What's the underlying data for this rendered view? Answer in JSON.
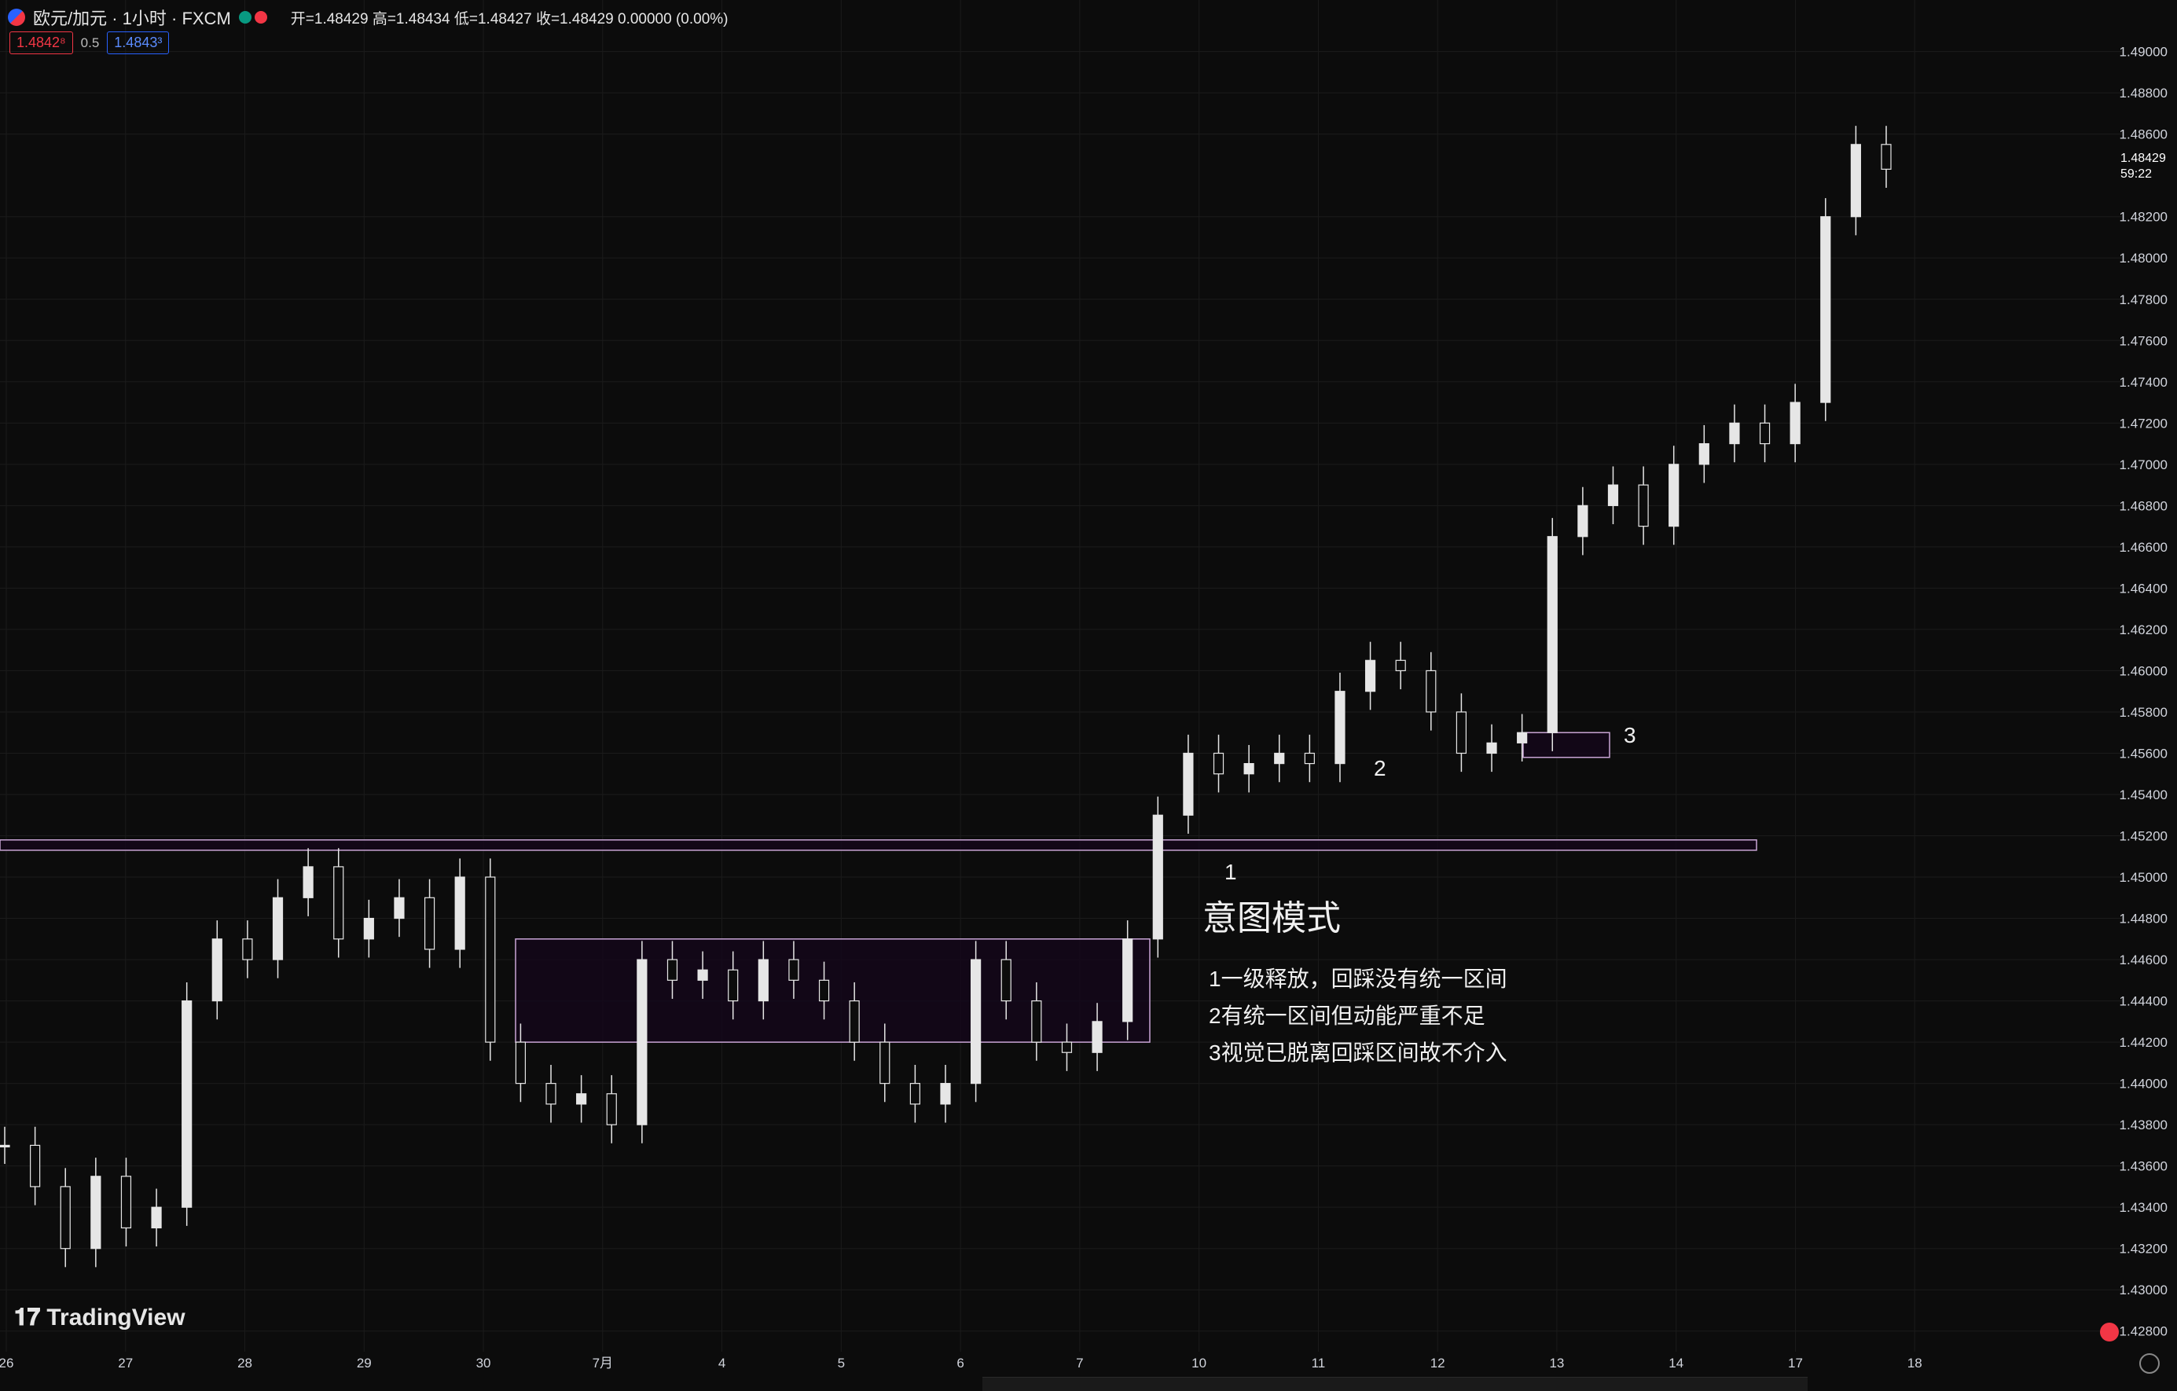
{
  "header": {
    "symbol": "欧元/加元 · 1小时 · FXCM",
    "ohlc": "开=1.48429 高=1.48434 低=1.48427 收=1.48429 0.00000 (0.00%)"
  },
  "quote": {
    "sell": "1.4842⁸",
    "spread": "0.5",
    "buy": "1.4843³"
  },
  "current_price": {
    "price": "1.48429",
    "countdown": "59:22"
  },
  "brand": "TradingView",
  "annotation": {
    "title": "意图模式",
    "lines": [
      "1一级释放，回踩没有统一区间",
      "2有统一区间但动能严重不足",
      "3视觉已脱离回踩区间故不介入"
    ],
    "markers": [
      "1",
      "2",
      "3"
    ]
  },
  "colors": {
    "background": "#0c0c0c",
    "candle": "#e6e6e6",
    "grid": "#1b1b1b",
    "zone": "#c9a5d6",
    "zone_fill": "#14061a",
    "axis_text": "#d1d4dc"
  },
  "chart_data": {
    "type": "candlestick",
    "symbol": "EURCAD",
    "interval": "1h",
    "ylim": [
      1.427,
      1.4925
    ],
    "y_ticks": [
      "1.49000",
      "1.48800",
      "1.48600",
      "1.48200",
      "1.48000",
      "1.47800",
      "1.47600",
      "1.47400",
      "1.47200",
      "1.47000",
      "1.46800",
      "1.46600",
      "1.46400",
      "1.46200",
      "1.46000",
      "1.45800",
      "1.45600",
      "1.45400",
      "1.45200",
      "1.45000",
      "1.44800",
      "1.44600",
      "1.44400",
      "1.44200",
      "1.44000",
      "1.43800",
      "1.43600",
      "1.43400",
      "1.43200",
      "1.43000",
      "1.42800"
    ],
    "x_ticks": [
      "26",
      "27",
      "28",
      "29",
      "30",
      "7月",
      "4",
      "5",
      "6",
      "7",
      "10",
      "11",
      "12",
      "13",
      "14",
      "17",
      "18"
    ],
    "series_close_path": [
      [
        1.437,
        1.435,
        1.432,
        1.4355,
        1.433,
        1.434,
        1.444,
        1.447,
        1.446,
        1.449,
        1.4505,
        1.447,
        1.448,
        1.449,
        1.4465,
        1.45,
        1.442,
        1.44,
        1.439,
        1.4395,
        1.438,
        1.446,
        1.445,
        1.4455,
        1.444,
        1.446,
        1.445,
        1.444,
        1.442,
        1.44,
        1.439,
        1.44,
        1.446,
        1.444,
        1.442,
        1.4415,
        1.443,
        1.447,
        1.453,
        1.456,
        1.455,
        1.4555,
        1.456,
        1.4555,
        1.459,
        1.4605,
        1.46,
        1.458,
        1.456,
        1.4565,
        1.457,
        1.4665,
        1.468,
        1.469,
        1.467,
        1.47,
        1.471,
        1.472,
        1.471,
        1.473,
        1.482,
        1.4855,
        1.4843
      ]
    ],
    "zones": [
      {
        "label": "breakout level",
        "low": 1.4513,
        "high": 1.4518
      },
      {
        "label": "consolidation",
        "low": 1.442,
        "high": 1.447
      },
      {
        "label": "consolidation-2",
        "low": 1.4558,
        "high": 1.457
      }
    ]
  }
}
